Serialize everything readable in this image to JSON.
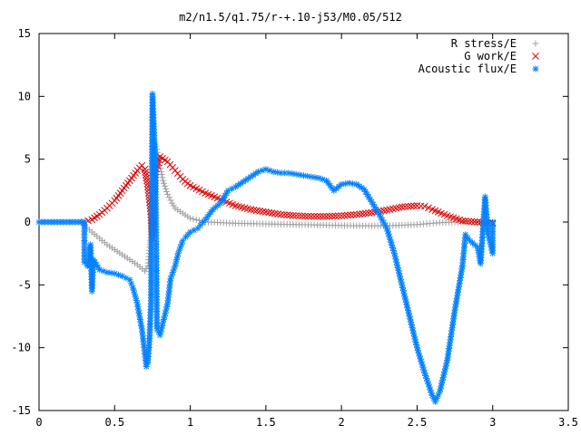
{
  "chart_data": {
    "type": "scatter",
    "title": "m2/n1.5/q1.75/r-+.10-j53/M0.05/512",
    "xlabel": "",
    "ylabel": "",
    "xlim": [
      0,
      3.5
    ],
    "ylim": [
      -15,
      15
    ],
    "xticks": [
      "0",
      "0.5",
      "1",
      "1.5",
      "2",
      "2.5",
      "3",
      "3.5"
    ],
    "yticks": [
      "15",
      "10",
      "5",
      "0",
      "-5",
      "-10",
      "-15"
    ],
    "xtick_values": [
      0,
      0.5,
      1,
      1.5,
      2,
      2.5,
      3,
      3.5
    ],
    "ytick_values": [
      15,
      10,
      5,
      0,
      -5,
      -10,
      -15
    ],
    "grid": false,
    "legend_position": "top-right",
    "series": [
      {
        "name": "R stress/E",
        "marker": "plus",
        "color": "#a0a0a0",
        "points": [
          [
            0.3,
            -0.3
          ],
          [
            0.35,
            -0.8
          ],
          [
            0.4,
            -1.3
          ],
          [
            0.45,
            -1.8
          ],
          [
            0.5,
            -2.2
          ],
          [
            0.55,
            -2.6
          ],
          [
            0.6,
            -3.0
          ],
          [
            0.65,
            -3.4
          ],
          [
            0.7,
            -3.9
          ],
          [
            0.72,
            -3.5
          ],
          [
            0.74,
            -1.0
          ],
          [
            0.75,
            3.0
          ],
          [
            0.76,
            6.5
          ],
          [
            0.78,
            5.8
          ],
          [
            0.8,
            4.5
          ],
          [
            0.82,
            3.3
          ],
          [
            0.85,
            2.2
          ],
          [
            0.88,
            1.5
          ],
          [
            0.9,
            1.1
          ],
          [
            0.95,
            0.7
          ],
          [
            1.0,
            0.3
          ],
          [
            1.1,
            0.0
          ],
          [
            1.3,
            -0.1
          ],
          [
            1.5,
            -0.15
          ],
          [
            1.7,
            -0.2
          ],
          [
            1.9,
            -0.25
          ],
          [
            2.1,
            -0.3
          ],
          [
            2.3,
            -0.3
          ],
          [
            2.5,
            -0.2
          ],
          [
            2.65,
            -0.05
          ],
          [
            2.75,
            0.0
          ],
          [
            2.85,
            0.0
          ],
          [
            3.0,
            0.0
          ]
        ]
      },
      {
        "name": "G work/E",
        "marker": "cross",
        "color": "#dd0000",
        "points": [
          [
            0.3,
            0.0
          ],
          [
            0.35,
            0.2
          ],
          [
            0.4,
            0.6
          ],
          [
            0.45,
            1.1
          ],
          [
            0.5,
            1.7
          ],
          [
            0.55,
            2.5
          ],
          [
            0.6,
            3.3
          ],
          [
            0.65,
            4.1
          ],
          [
            0.68,
            4.5
          ],
          [
            0.7,
            4.2
          ],
          [
            0.71,
            3.5
          ],
          [
            0.72,
            2.8
          ],
          [
            0.73,
            1.8
          ],
          [
            0.74,
            0.6
          ],
          [
            0.75,
            -1.3
          ],
          [
            0.77,
            4.0
          ],
          [
            0.8,
            5.2
          ],
          [
            0.85,
            4.8
          ],
          [
            0.9,
            4.1
          ],
          [
            0.95,
            3.4
          ],
          [
            1.0,
            2.9
          ],
          [
            1.1,
            2.3
          ],
          [
            1.2,
            1.8
          ],
          [
            1.3,
            1.3
          ],
          [
            1.4,
            1.0
          ],
          [
            1.5,
            0.8
          ],
          [
            1.6,
            0.6
          ],
          [
            1.7,
            0.5
          ],
          [
            1.8,
            0.45
          ],
          [
            1.9,
            0.45
          ],
          [
            2.0,
            0.5
          ],
          [
            2.1,
            0.6
          ],
          [
            2.2,
            0.75
          ],
          [
            2.3,
            0.95
          ],
          [
            2.4,
            1.2
          ],
          [
            2.5,
            1.3
          ],
          [
            2.55,
            1.25
          ],
          [
            2.6,
            1.0
          ],
          [
            2.7,
            0.5
          ],
          [
            2.8,
            0.1
          ],
          [
            2.9,
            0.0
          ],
          [
            3.0,
            -0.1
          ]
        ]
      },
      {
        "name": "Acoustic flux/E",
        "marker": "star",
        "color": "#0080ff",
        "points": [
          [
            0.0,
            0.0
          ],
          [
            0.1,
            0.0
          ],
          [
            0.2,
            0.0
          ],
          [
            0.3,
            0.0
          ],
          [
            0.3,
            -3.2
          ],
          [
            0.32,
            -3.5
          ],
          [
            0.33,
            -2.8
          ],
          [
            0.34,
            -1.8
          ],
          [
            0.35,
            -5.5
          ],
          [
            0.36,
            -3.0
          ],
          [
            0.4,
            -3.8
          ],
          [
            0.45,
            -4.0
          ],
          [
            0.5,
            -4.1
          ],
          [
            0.55,
            -4.3
          ],
          [
            0.6,
            -4.6
          ],
          [
            0.62,
            -5.2
          ],
          [
            0.65,
            -6.5
          ],
          [
            0.68,
            -8.5
          ],
          [
            0.7,
            -10.5
          ],
          [
            0.71,
            -11.5
          ],
          [
            0.72,
            -11.2
          ],
          [
            0.73,
            -9.5
          ],
          [
            0.74,
            -6.5
          ],
          [
            0.75,
            10.2
          ],
          [
            0.77,
            4.5
          ],
          [
            0.78,
            -8.5
          ],
          [
            0.8,
            -9.0
          ],
          [
            0.82,
            -8.0
          ],
          [
            0.85,
            -6.5
          ],
          [
            0.87,
            -4.5
          ],
          [
            0.9,
            -3.5
          ],
          [
            0.92,
            -2.5
          ],
          [
            0.95,
            -1.5
          ],
          [
            0.97,
            -1.2
          ],
          [
            1.0,
            -0.8
          ],
          [
            1.05,
            -0.5
          ],
          [
            1.1,
            0.2
          ],
          [
            1.15,
            1.0
          ],
          [
            1.2,
            1.5
          ],
          [
            1.25,
            2.5
          ],
          [
            1.3,
            2.8
          ],
          [
            1.35,
            3.2
          ],
          [
            1.4,
            3.6
          ],
          [
            1.45,
            4.0
          ],
          [
            1.5,
            4.2
          ],
          [
            1.55,
            4.0
          ],
          [
            1.6,
            3.9
          ],
          [
            1.65,
            3.9
          ],
          [
            1.7,
            3.8
          ],
          [
            1.75,
            3.7
          ],
          [
            1.8,
            3.6
          ],
          [
            1.85,
            3.5
          ],
          [
            1.9,
            3.3
          ],
          [
            1.95,
            2.5
          ],
          [
            2.0,
            3.0
          ],
          [
            2.05,
            3.1
          ],
          [
            2.1,
            3.0
          ],
          [
            2.15,
            2.6
          ],
          [
            2.2,
            1.6
          ],
          [
            2.25,
            0.6
          ],
          [
            2.3,
            -0.5
          ],
          [
            2.35,
            -2.5
          ],
          [
            2.4,
            -5.0
          ],
          [
            2.45,
            -7.5
          ],
          [
            2.5,
            -10.0
          ],
          [
            2.55,
            -12.0
          ],
          [
            2.6,
            -13.8
          ],
          [
            2.62,
            -14.3
          ],
          [
            2.65,
            -13.5
          ],
          [
            2.7,
            -11.0
          ],
          [
            2.75,
            -7.0
          ],
          [
            2.8,
            -3.5
          ],
          [
            2.82,
            -1.0
          ],
          [
            2.85,
            -1.5
          ],
          [
            2.9,
            -2.0
          ],
          [
            2.92,
            -3.3
          ],
          [
            2.95,
            2.0
          ],
          [
            2.97,
            -1.0
          ],
          [
            3.0,
            -2.5
          ],
          [
            3.0,
            0.0
          ]
        ]
      }
    ]
  }
}
